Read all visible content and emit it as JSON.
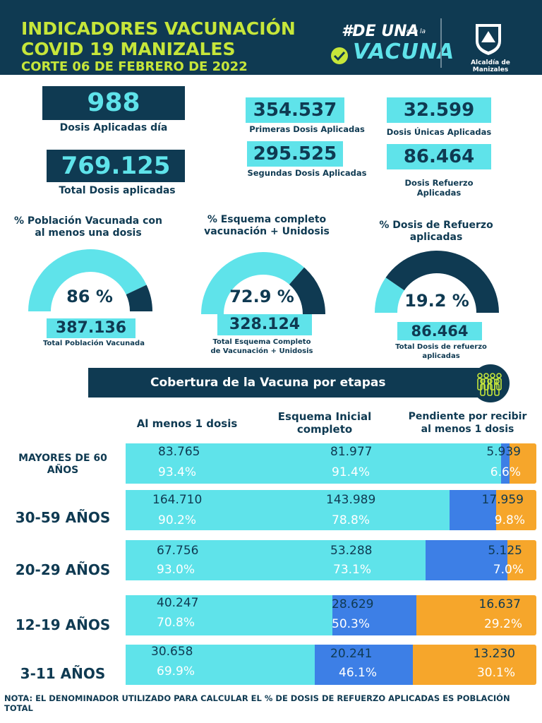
{
  "header": {
    "title_line1": "INDICADORES VACUNACIÓN",
    "title_line2": "COVID 19 MANIZALES",
    "title_line3": "CORTE 06 DE FEBRERO DE 2022",
    "campaign_hash": "#DE UNA",
    "campaign_conla": "con la",
    "campaign_vacuna": "VACUNA",
    "org_name": "Alcaldía de Manizales"
  },
  "colors": {
    "navy": "#0f3a52",
    "cyan": "#5fe3ea",
    "lime": "#c6e63a",
    "blue": "#3d7fe6",
    "orange": "#f6a62b"
  },
  "kpis": {
    "dosis_dia": {
      "value": "988",
      "label": "Dosis Aplicadas día"
    },
    "total_dosis": {
      "value": "769.125",
      "label": "Total Dosis aplicadas"
    },
    "primeras": {
      "value": "354.537",
      "label": "Primeras Dosis Aplicadas"
    },
    "segundas": {
      "value": "295.525",
      "label": "Segundas Dosis Aplicadas"
    },
    "unicas": {
      "value": "32.599",
      "label": "Dosis Únicas Aplicadas"
    },
    "refuerzo": {
      "value": "86.464",
      "label_line1": "Dosis Refuerzo",
      "label_line2": "Aplicadas"
    }
  },
  "gauges": [
    {
      "title_line1": "% Población Vacunada con",
      "title_line2": "al menos una dosis",
      "percent": 86,
      "percent_text": "86 %",
      "value": "387.136",
      "sub_line1": "Total Población Vacunada",
      "sub_line2": ""
    },
    {
      "title_line1": "% Esquema completo",
      "title_line2": "vacunación + Unidosis",
      "percent": 72.9,
      "percent_text": "72.9 %",
      "value": "328.124",
      "sub_line1": "Total Esquema Completo",
      "sub_line2": "de Vacunación + Unidosis"
    },
    {
      "title_line1": "% Dosis de Refuerzo",
      "title_line2": "aplicadas",
      "percent": 19.2,
      "percent_text": "19.2 %",
      "value": "86.464",
      "sub_line1": "Total Dosis de refuerzo",
      "sub_line2": "aplicadas"
    }
  ],
  "etapas": {
    "title": "Cobertura de la Vacuna por etapas",
    "col1": "Al menos 1 dosis",
    "col2_line1": "Esquema Inicial",
    "col2_line2": "completo",
    "col3_line1": "Pendiente por recibir",
    "col3_line2": "al menos 1 dosis",
    "rows": [
      {
        "label_line1": "MAYORES DE 60",
        "label_line2": "AÑOS",
        "c1": "83.765",
        "p1": "93.4%",
        "c2": "81.977",
        "p2": "91.4%",
        "c3": "5.939",
        "p3": "6.6%",
        "f1": 93.4,
        "f2": 91.4
      },
      {
        "label_line1": "30-59 AÑOS",
        "label_line2": "",
        "c1": "164.710",
        "p1": "90.2%",
        "c2": "143.989",
        "p2": "78.8%",
        "c3": "17.959",
        "p3": "9.8%",
        "f1": 90.2,
        "f2": 78.8
      },
      {
        "label_line1": "20-29 AÑOS",
        "label_line2": "",
        "c1": "67.756",
        "p1": "93.0%",
        "c2": "53.288",
        "p2": "73.1%",
        "c3": "5.125",
        "p3": "7.0%",
        "f1": 93.0,
        "f2": 73.1
      },
      {
        "label_line1": "12-19 AÑOS",
        "label_line2": "",
        "c1": "40.247",
        "p1": "70.8%",
        "c2": "28.629",
        "p2": "50.3%",
        "c3": "16.637",
        "p3": "29.2%",
        "f1": 70.8,
        "f2": 50.3
      },
      {
        "label_line1": "3-11 AÑOS",
        "label_line2": "",
        "c1": "30.658",
        "p1": "69.9%",
        "c2": "20.241",
        "p2": "46.1%",
        "c3": "13.230",
        "p3": "30.1%",
        "f1": 69.9,
        "f2": 46.1
      }
    ]
  },
  "note": "NOTA: EL DENOMINADOR UTILIZADO PARA CALCULAR EL % DE DOSIS DE REFUERZO APLICADAS ES POBLACIÓN TOTAL"
}
